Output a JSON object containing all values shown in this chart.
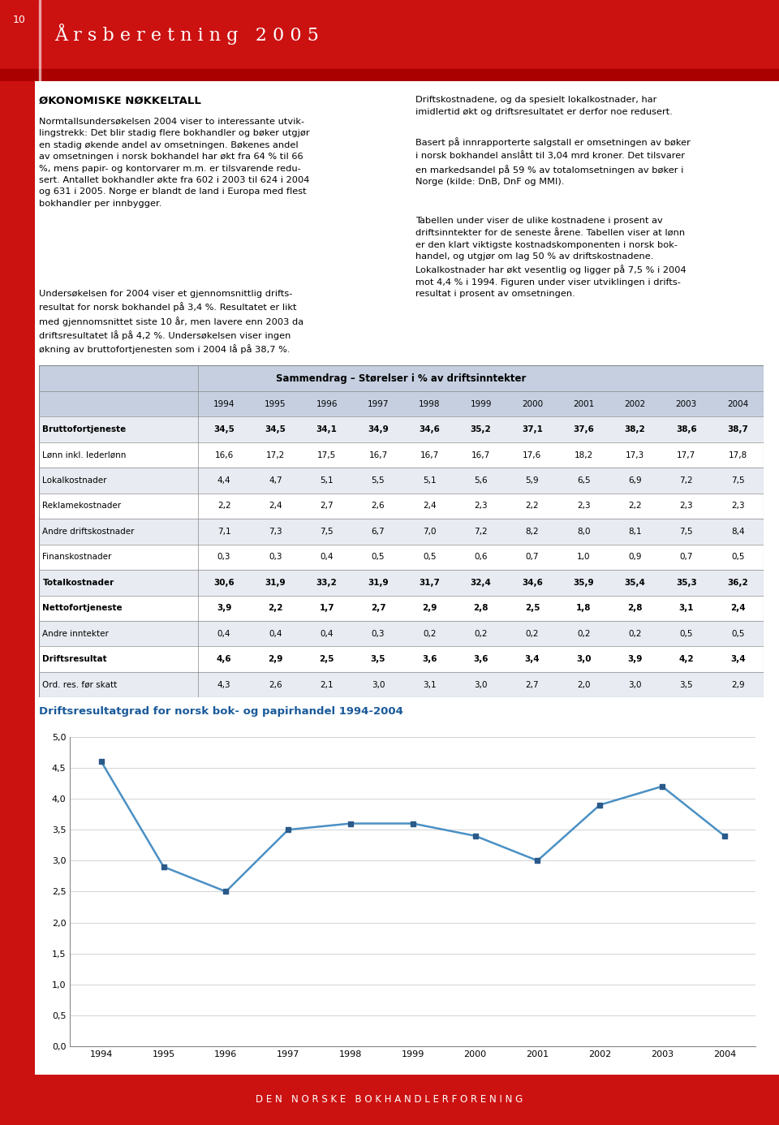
{
  "page_bg": "#ffffff",
  "header_bg": "#cc1111",
  "header_dark_bg": "#aa0000",
  "header_page_num": "10",
  "header_title": "Å r s b e r e t n i n g   2 0 0 5",
  "header_title_color": "#ffffff",
  "left_bar_color": "#cc1111",
  "body_text_left": [
    "ØKONOMISKE NØKKELTALL",
    "Normtallsundersøkelsen 2004 viser to interessante utvik-\nlingstrekk: Det blir stadig flere bokhandler og bøker utgjør\nen stadig økende andel av omsetningen. Bøkenes andel\nav omsetningen i norsk bokhandel har økt fra 64 % til 66\n%, mens papir- og kontorvarer m.m. er tilsvarende redu-\nsert. Antallet bokhandler økte fra 602 i 2003 til 624 i 2004\nog 631 i 2005. Norge er blandt de land i Europa med flest\nbokhandler per innbygger.",
    "Undersøkelsen for 2004 viser et gjennomsnittlig drifts-\nresultat for norsk bokhandel på 3,4 %. Resultatet er likt\nmed gjennomsnittet siste 10 år, men lavere enn 2003 da\ndriftsresultatet lå på 4,2 %. Undersøkelsen viser ingen\nøkning av bruttofortjenesten som i 2004 lå på 38,7 %."
  ],
  "body_text_right": [
    "Driftskostnadene, og da spesielt lokalkostnader, har\nimidlertid økt og driftsresultatet er derfor noe redusert.",
    "Basert på innrapporterte salgstall er omsetningen av bøker\ni norsk bokhandel anslått til 3,04 mrd kroner. Det tilsvarer\nen markedsandel på 59 % av totalomsetningen av bøker i\nNorge (kilde: DnB, DnF og MMI).",
    "Tabellen under viser de ulike kostnadene i prosent av\ndriftsinntekter for de seneste årene. Tabellen viser at lønn\ner den klart viktigste kostnadskomponenten i norsk bok-\nhandel, og utgjør om lag 50 % av driftskostnadene.\nLokalkostnader har økt vesentlig og ligger på 7,5 % i 2004\nmot 4,4 % i 1994. Figuren under viser utviklingen i drifts-\nresultat i prosent av omsetningen."
  ],
  "table_title": "Sammendrag – Størelser i % av driftsinntekter",
  "table_header_bg": "#c5cfe0",
  "table_row_bg1": "#ffffff",
  "table_row_bg2": "#e8ecf2",
  "table_years": [
    "1994",
    "1995",
    "1996",
    "1997",
    "1998",
    "1999",
    "2000",
    "2001",
    "2002",
    "2003",
    "2004"
  ],
  "table_rows": [
    {
      "label": "Bruttofortjeneste",
      "bold": true,
      "values": [
        34.5,
        34.5,
        34.1,
        34.9,
        34.6,
        35.2,
        37.1,
        37.6,
        38.2,
        38.6,
        38.7
      ]
    },
    {
      "label": "Lønn inkl. lederlønn",
      "bold": false,
      "values": [
        16.6,
        17.2,
        17.5,
        16.7,
        16.7,
        16.7,
        17.6,
        18.2,
        17.3,
        17.7,
        17.8
      ]
    },
    {
      "label": "Lokalkostnader",
      "bold": false,
      "values": [
        4.4,
        4.7,
        5.1,
        5.5,
        5.1,
        5.6,
        5.9,
        6.5,
        6.9,
        7.2,
        7.5
      ]
    },
    {
      "label": "Reklamekostnader",
      "bold": false,
      "values": [
        2.2,
        2.4,
        2.7,
        2.6,
        2.4,
        2.3,
        2.2,
        2.3,
        2.2,
        2.3,
        2.3
      ]
    },
    {
      "label": "Andre driftskostnader",
      "bold": false,
      "values": [
        7.1,
        7.3,
        7.5,
        6.7,
        7.0,
        7.2,
        8.2,
        8.0,
        8.1,
        7.5,
        8.4
      ]
    },
    {
      "label": "Finanskostnader",
      "bold": false,
      "values": [
        0.3,
        0.3,
        0.4,
        0.5,
        0.5,
        0.6,
        0.7,
        1.0,
        0.9,
        0.7,
        0.5
      ]
    },
    {
      "label": "Totalkostnader",
      "bold": true,
      "values": [
        30.6,
        31.9,
        33.2,
        31.9,
        31.7,
        32.4,
        34.6,
        35.9,
        35.4,
        35.3,
        36.2
      ]
    },
    {
      "label": "Nettofortjeneste",
      "bold": true,
      "values": [
        3.9,
        2.2,
        1.7,
        2.7,
        2.9,
        2.8,
        2.5,
        1.8,
        2.8,
        3.1,
        2.4
      ]
    },
    {
      "label": "Andre inntekter",
      "bold": false,
      "values": [
        0.4,
        0.4,
        0.4,
        0.3,
        0.2,
        0.2,
        0.2,
        0.2,
        0.2,
        0.5,
        0.5
      ]
    },
    {
      "label": "Driftsresultat",
      "bold": true,
      "values": [
        4.6,
        2.9,
        2.5,
        3.5,
        3.6,
        3.6,
        3.4,
        3.0,
        3.9,
        4.2,
        3.4
      ]
    },
    {
      "label": "Ord. res. før skatt",
      "bold": false,
      "values": [
        4.3,
        2.6,
        2.1,
        3.0,
        3.1,
        3.0,
        2.7,
        2.0,
        3.0,
        3.5,
        2.9
      ]
    }
  ],
  "chart_title": "Driftsresultatgrad for norsk bok- og papirhandel 1994-2004",
  "chart_title_color": "#1a5a9a",
  "chart_years": [
    1994,
    1995,
    1996,
    1997,
    1998,
    1999,
    2000,
    2001,
    2002,
    2003,
    2004
  ],
  "chart_values": [
    4.6,
    2.9,
    2.5,
    3.5,
    3.6,
    3.6,
    3.4,
    3.0,
    3.9,
    4.2,
    3.4
  ],
  "chart_line_color": "#4a90c4",
  "chart_marker_color": "#2a5a8a",
  "chart_ylim": [
    0.0,
    5.0
  ],
  "chart_yticks": [
    0.0,
    0.5,
    1.0,
    1.5,
    2.0,
    2.5,
    3.0,
    3.5,
    4.0,
    4.5,
    5.0
  ],
  "footer_bg": "#cc1111",
  "footer_text": "D E N   N O R S K E   B O K H A N D L E R F O R E N I N G",
  "footer_text_color": "#ffffff"
}
